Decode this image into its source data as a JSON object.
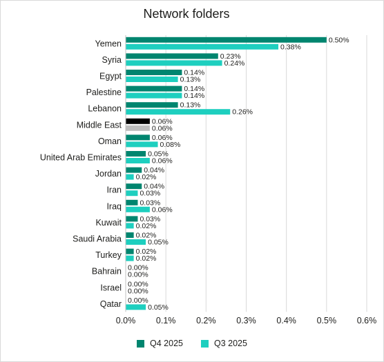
{
  "chart_data": {
    "type": "bar",
    "orientation": "horizontal",
    "title": "Network folders",
    "categories": [
      "Yemen",
      "Syria",
      "Egypt",
      "Palestine",
      "Lebanon",
      "Middle East",
      "Oman",
      "United Arab Emirates",
      "Jordan",
      "Iran",
      "Iraq",
      "Kuwait",
      "Saudi Arabia",
      "Turkey",
      "Bahrain",
      "Israel",
      "Qatar"
    ],
    "series": [
      {
        "name": "Q4 2025",
        "color": "#00856f",
        "values": [
          0.5,
          0.23,
          0.14,
          0.14,
          0.13,
          0.06,
          0.06,
          0.05,
          0.04,
          0.04,
          0.03,
          0.03,
          0.02,
          0.02,
          0.0,
          0.0,
          0.0
        ],
        "labels": [
          "0.50%",
          "0.23%",
          "0.14%",
          "0.14%",
          "0.13%",
          "0.06%",
          "0.06%",
          "0.05%",
          "0.04%",
          "0.04%",
          "0.03%",
          "0.03%",
          "0.02%",
          "0.02%",
          "0.00%",
          "0.00%",
          "0.00%"
        ]
      },
      {
        "name": "Q3 2025",
        "color": "#1ecfbf",
        "values": [
          0.38,
          0.24,
          0.13,
          0.14,
          0.26,
          0.06,
          0.08,
          0.06,
          0.02,
          0.03,
          0.06,
          0.02,
          0.05,
          0.02,
          0.0,
          0.0,
          0.05
        ],
        "labels": [
          "0.38%",
          "0.24%",
          "0.13%",
          "0.14%",
          "0.26%",
          "0.06%",
          "0.08%",
          "0.06%",
          "0.02%",
          "0.03%",
          "0.06%",
          "0.02%",
          "0.05%",
          "0.02%",
          "0.00%",
          "0.00%",
          "0.05%"
        ]
      }
    ],
    "highlight": {
      "category": "Middle East",
      "colors": [
        "#000000",
        "#bdbdbd"
      ]
    },
    "xlim": [
      0,
      0.6
    ],
    "xticks": [
      0,
      0.1,
      0.2,
      0.3,
      0.4,
      0.5,
      0.6
    ],
    "xtick_labels": [
      "0.0%",
      "0.1%",
      "0.2%",
      "0.3%",
      "0.4%",
      "0.5%",
      "0.6%"
    ],
    "grid": "vertical",
    "legend_position": "bottom"
  }
}
